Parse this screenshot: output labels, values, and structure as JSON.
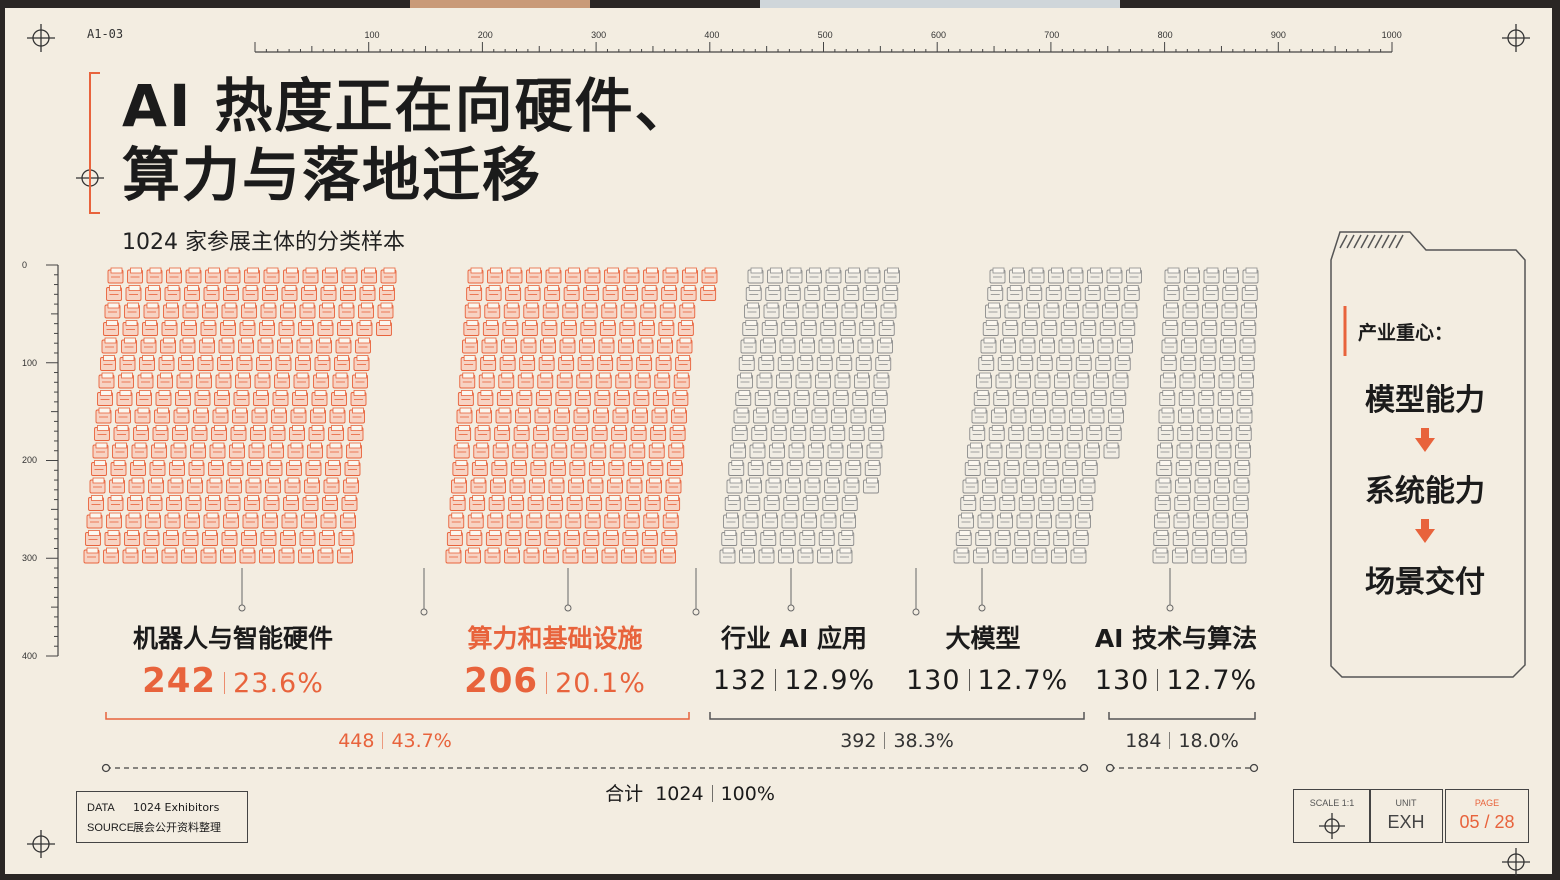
{
  "slide": {
    "code": "A1-03",
    "title_line1": "AI 热度正在向硬件、",
    "title_line2": "算力与落地迁移",
    "subtitle": "1024 家参展主体的分类样本"
  },
  "ruler": {
    "x_ticks": [
      "100",
      "200",
      "300",
      "400",
      "500",
      "600",
      "700",
      "800",
      "900",
      "1000"
    ],
    "y_ticks": [
      "0",
      "100",
      "200",
      "300",
      "400"
    ]
  },
  "categories": [
    {
      "name": "机器人与智能硬件",
      "count": "242",
      "pct": "23.6%",
      "color": "#e8633c"
    },
    {
      "name": "算力和基础设施",
      "count": "206",
      "pct": "20.1%",
      "color": "#e8633c"
    },
    {
      "name": "行业 AI 应用",
      "count": "132",
      "pct": "12.9%",
      "color": "#9a9a9a"
    },
    {
      "name": "大模型",
      "count": "130",
      "pct": "12.7%",
      "color": "#9a9a9a"
    },
    {
      "name": "AI 技术与算法",
      "count": "130",
      "pct": "12.7%",
      "color": "#9a9a9a"
    }
  ],
  "groups": [
    {
      "count": "448",
      "pct": "43.7%"
    },
    {
      "count": "392",
      "pct": "38.3%"
    },
    {
      "count": "184",
      "pct": "18.0%"
    }
  ],
  "total": {
    "label": "合计",
    "count": "1024",
    "pct": "100%"
  },
  "panel": {
    "label": "产业重心：",
    "steps": [
      "模型能力",
      "系统能力",
      "场景交付"
    ]
  },
  "source": {
    "data_key": "DATA",
    "data_val": "1024 Exhibitors",
    "source_key": "SOURCE",
    "source_val": "展会公开资料整理"
  },
  "meta": {
    "scale_key": "SCALE  1:1",
    "unit_key": "UNIT",
    "unit_val": "EXH",
    "page_key": "PAGE",
    "page_val": "05 / 28"
  },
  "colors": {
    "accent": "#e8633c",
    "ink": "#1b1b1b",
    "grey": "#9a9a9a",
    "paper": "#f3ede1"
  }
}
